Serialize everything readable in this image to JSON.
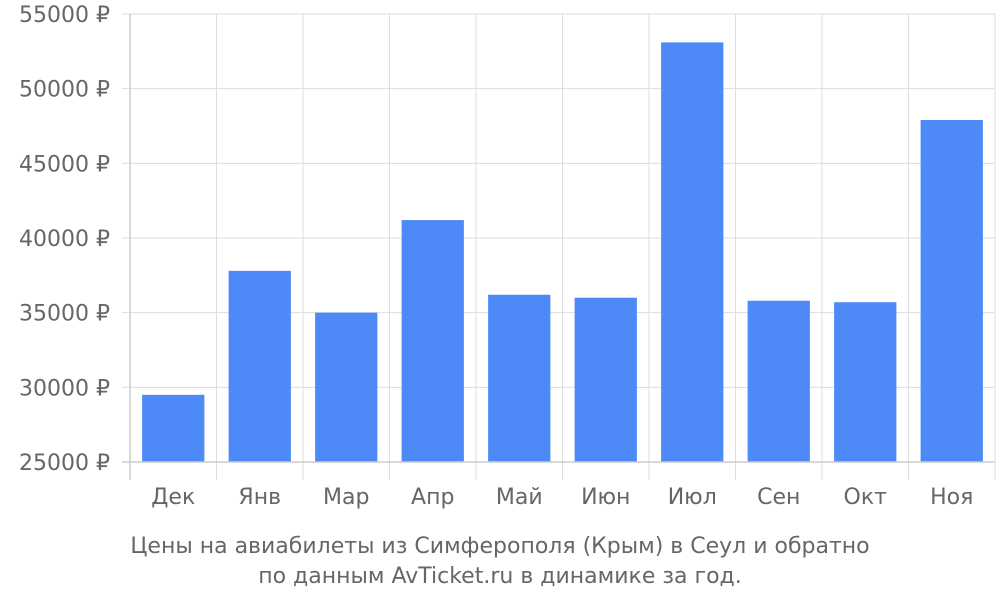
{
  "chart_data": {
    "type": "bar",
    "categories": [
      "Дек",
      "Янв",
      "Мар",
      "Апр",
      "Май",
      "Июн",
      "Июл",
      "Сен",
      "Окт",
      "Ноя"
    ],
    "values": [
      29500,
      37800,
      35000,
      41200,
      36200,
      36000,
      53100,
      35800,
      35700,
      47900
    ],
    "ylim": [
      25000,
      55000
    ],
    "yticks": [
      25000,
      30000,
      35000,
      40000,
      45000,
      50000,
      55000
    ],
    "ytick_suffix": " ₽",
    "bar_color": "#4d8af8",
    "grid": true
  },
  "caption": {
    "line1": "Цены на авиабилеты из Симферополя (Крым) в Сеул и обратно",
    "line2": "по данным AvTicket.ru в динамике за год."
  }
}
